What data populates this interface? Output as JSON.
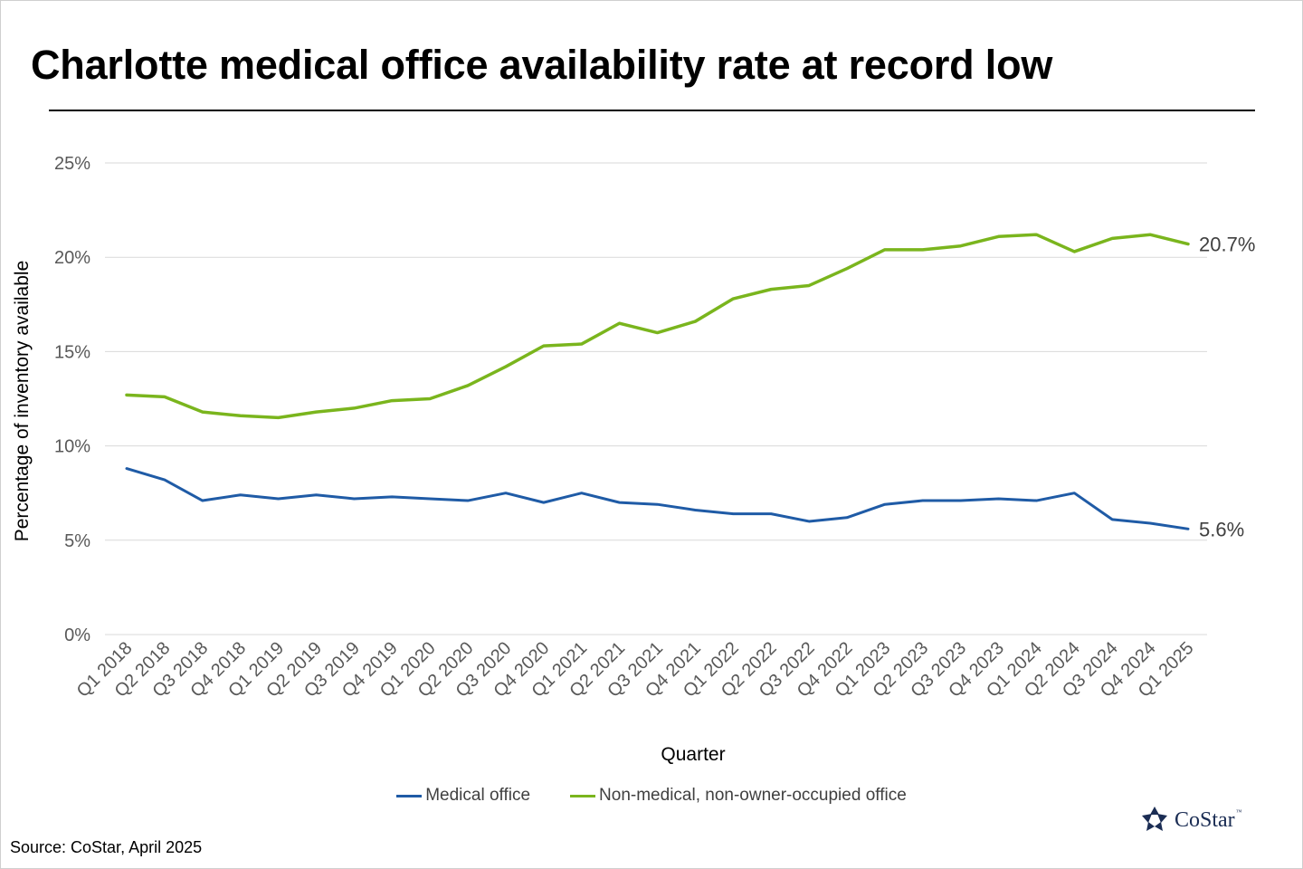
{
  "title": "Charlotte medical office availability rate at record low",
  "source": "Source: CoStar, April 2025",
  "logo": {
    "text": "CoStar",
    "trademark": "™"
  },
  "colors": {
    "medical": "#1f5ba6",
    "nonmedical": "#7ab51d",
    "grid": "#d9d9d9"
  },
  "chart_data": {
    "type": "line",
    "title": "Charlotte medical office availability rate at record low",
    "xlabel": "Quarter",
    "ylabel": "Percentage of inventory available",
    "ylim": [
      0,
      25
    ],
    "yticks": [
      0,
      5,
      10,
      15,
      20,
      25
    ],
    "ytick_labels": [
      "0%",
      "5%",
      "10%",
      "15%",
      "20%",
      "25%"
    ],
    "grid": true,
    "legend_position": "bottom",
    "categories": [
      "Q1 2018",
      "Q2 2018",
      "Q3 2018",
      "Q4 2018",
      "Q1 2019",
      "Q2 2019",
      "Q3 2019",
      "Q4 2019",
      "Q1 2020",
      "Q2 2020",
      "Q3 2020",
      "Q4 2020",
      "Q1 2021",
      "Q2 2021",
      "Q3 2021",
      "Q4 2021",
      "Q1 2022",
      "Q2 2022",
      "Q3 2022",
      "Q4 2022",
      "Q1 2023",
      "Q2 2023",
      "Q3 2023",
      "Q4 2023",
      "Q1 2024",
      "Q2 2024",
      "Q3 2024",
      "Q4 2024",
      "Q1 2025"
    ],
    "series": [
      {
        "name": "Medical office",
        "color": "#1f5ba6",
        "end_label": "5.6%",
        "values": [
          8.8,
          8.2,
          7.1,
          7.4,
          7.2,
          7.4,
          7.2,
          7.3,
          7.2,
          7.1,
          7.5,
          7.0,
          7.5,
          7.0,
          6.9,
          6.6,
          6.4,
          6.4,
          6.0,
          6.2,
          6.9,
          7.1,
          7.1,
          7.2,
          7.1,
          7.5,
          6.1,
          5.9,
          5.6
        ]
      },
      {
        "name": "Non-medical, non-owner-occupied office",
        "color": "#7ab51d",
        "end_label": "20.7%",
        "values": [
          12.7,
          12.6,
          11.8,
          11.6,
          11.5,
          11.8,
          12.0,
          12.4,
          12.5,
          13.2,
          14.2,
          15.3,
          15.4,
          16.5,
          16.0,
          16.6,
          17.8,
          18.3,
          18.5,
          19.4,
          20.4,
          20.4,
          20.6,
          21.1,
          21.2,
          20.3,
          21.0,
          21.2,
          20.7
        ]
      }
    ]
  }
}
